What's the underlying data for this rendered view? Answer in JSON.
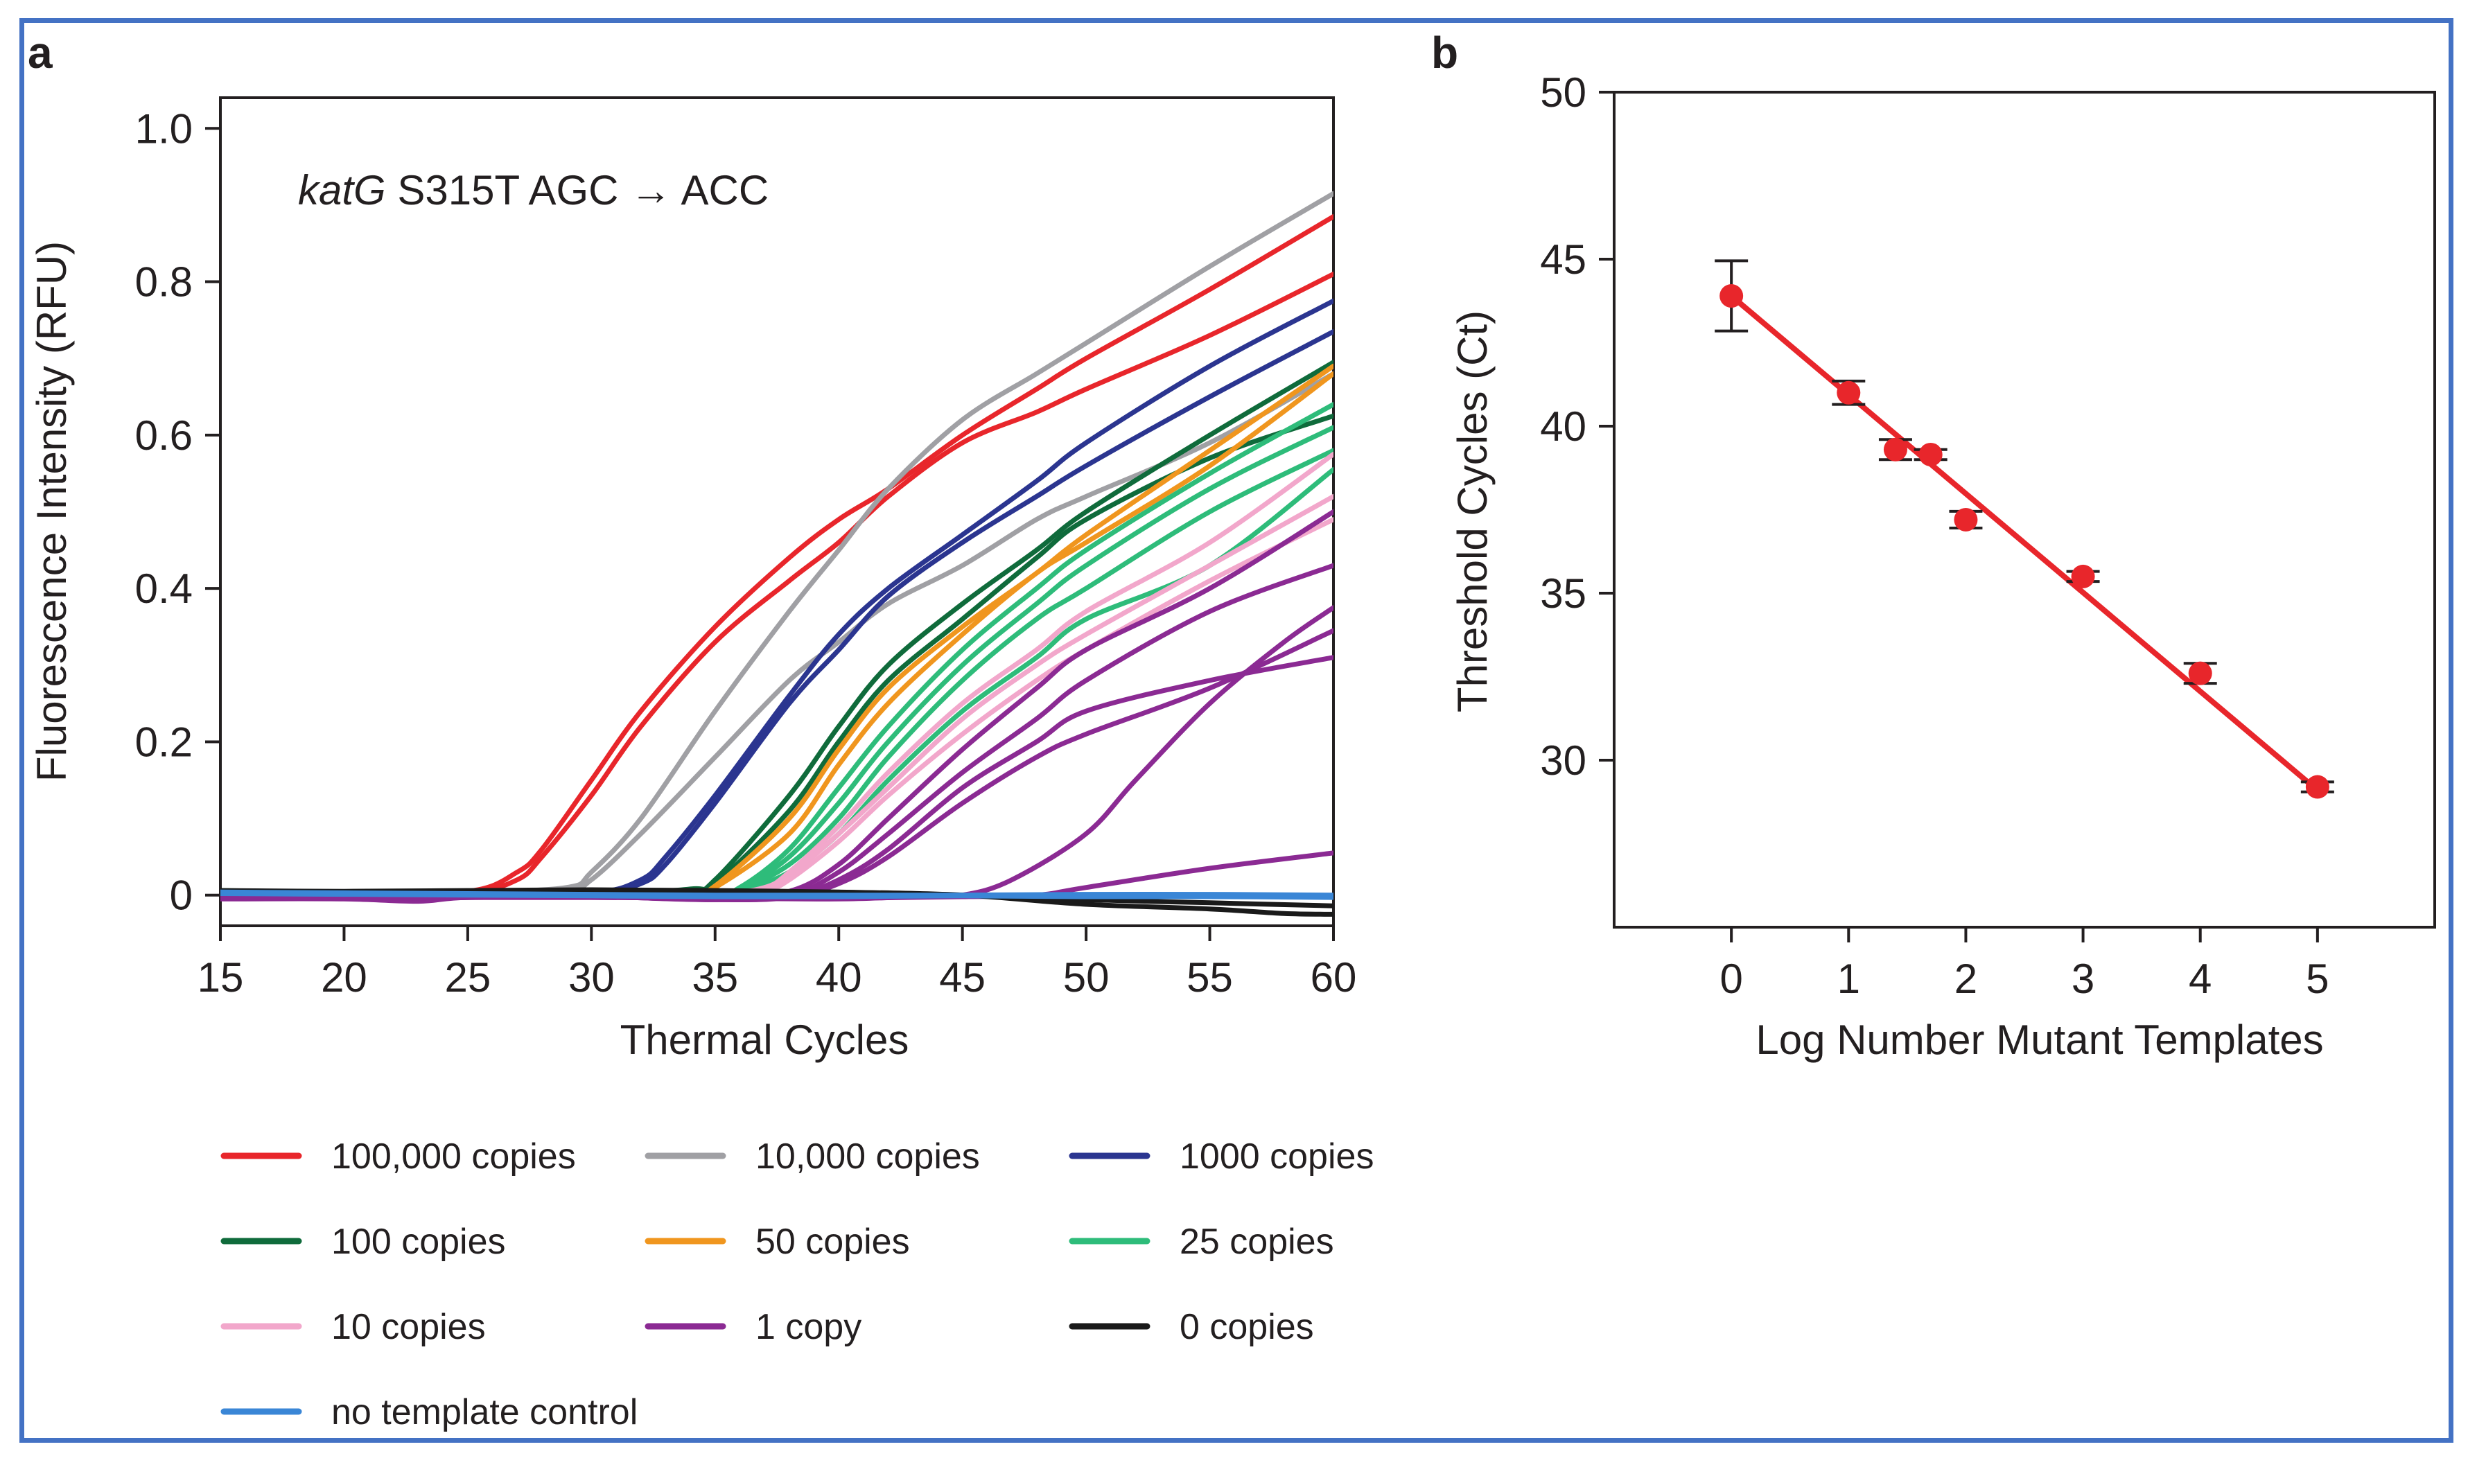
{
  "chart_data": [
    {
      "panel": "a",
      "type": "line",
      "annotation": {
        "gene": "katG",
        "mutation": "S315T",
        "from": "AGC",
        "arrow": "→",
        "to": "ACC"
      },
      "xlabel": "Thermal Cycles",
      "ylabel": "Fluorescence Intensity (RFU)",
      "xlim": [
        15,
        60
      ],
      "ylim": [
        -0.04,
        1.04
      ],
      "xticks": [
        "15",
        "20",
        "25",
        "30",
        "35",
        "40",
        "45",
        "50",
        "55",
        "60"
      ],
      "yticks": [
        {
          "value": 0,
          "label": "0"
        },
        {
          "value": 0.2,
          "label": "0.2"
        },
        {
          "value": 0.4,
          "label": "0.4"
        },
        {
          "value": 0.6,
          "label": "0.6"
        },
        {
          "value": 0.8,
          "label": "0.8"
        },
        {
          "value": 1.0,
          "label": "1.0"
        }
      ],
      "legend": [
        {
          "label": "100,000 copies",
          "color": "#e8262b"
        },
        {
          "label": "10,000 copies",
          "color": "#a0a0a4"
        },
        {
          "label": "1000 copies",
          "color": "#2b3590"
        },
        {
          "label": "100 copies",
          "color": "#0f6b3b"
        },
        {
          "label": "50 copies",
          "color": "#f0961e"
        },
        {
          "label": "25 copies",
          "color": "#2ebc7a"
        },
        {
          "label": "10 copies",
          "color": "#f2a7cb"
        },
        {
          "label": "1 copy",
          "color": "#8b2a93"
        },
        {
          "label": "0 copies",
          "color": "#1a1a1a"
        },
        {
          "label": "no template control",
          "color": "#3a86d6"
        }
      ],
      "series": [
        {
          "group": "100,000 copies",
          "color": "#e8262b",
          "x": [
            15,
            20,
            25,
            27,
            28,
            30,
            32,
            35,
            38,
            40,
            42,
            45,
            48,
            50,
            55,
            60
          ],
          "y": [
            0.005,
            0.004,
            0.005,
            0.03,
            0.06,
            0.15,
            0.24,
            0.35,
            0.44,
            0.49,
            0.53,
            0.6,
            0.66,
            0.7,
            0.79,
            0.885
          ]
        },
        {
          "group": "100,000 copies",
          "color": "#e8262b",
          "x": [
            15,
            20,
            25,
            27,
            28,
            30,
            32,
            35,
            38,
            40,
            42,
            45,
            48,
            50,
            55,
            60
          ],
          "y": [
            0.003,
            0.004,
            0.004,
            0.02,
            0.05,
            0.13,
            0.22,
            0.33,
            0.41,
            0.46,
            0.52,
            0.59,
            0.63,
            0.66,
            0.73,
            0.81
          ]
        },
        {
          "group": "10,000 copies",
          "color": "#a0a0a4",
          "x": [
            15,
            20,
            25,
            29,
            30,
            32,
            35,
            38,
            40,
            42,
            45,
            48,
            50,
            55,
            60
          ],
          "y": [
            0.004,
            0.003,
            0.004,
            0.01,
            0.03,
            0.1,
            0.24,
            0.37,
            0.45,
            0.53,
            0.62,
            0.68,
            0.72,
            0.82,
            0.915
          ]
        },
        {
          "group": "10,000 copies",
          "color": "#a0a0a4",
          "x": [
            15,
            20,
            25,
            29,
            30,
            32,
            35,
            38,
            40,
            42,
            45,
            48,
            50,
            55,
            60
          ],
          "y": [
            0.004,
            0.003,
            0.003,
            0.008,
            0.02,
            0.08,
            0.18,
            0.28,
            0.33,
            0.38,
            0.43,
            0.49,
            0.52,
            0.59,
            0.68
          ]
        },
        {
          "group": "1000 copies",
          "color": "#2b3590",
          "x": [
            15,
            20,
            25,
            30,
            32,
            33,
            35,
            38,
            40,
            42,
            45,
            48,
            50,
            55,
            60
          ],
          "y": [
            0.002,
            0.002,
            0.003,
            0.003,
            0.02,
            0.05,
            0.13,
            0.26,
            0.34,
            0.4,
            0.47,
            0.54,
            0.59,
            0.69,
            0.775
          ]
        },
        {
          "group": "1000 copies",
          "color": "#2b3590",
          "x": [
            15,
            20,
            25,
            30,
            32,
            33,
            35,
            38,
            40,
            42,
            45,
            48,
            50,
            55,
            60
          ],
          "y": [
            0.002,
            0.002,
            0.002,
            0.002,
            0.015,
            0.04,
            0.12,
            0.25,
            0.32,
            0.39,
            0.46,
            0.52,
            0.56,
            0.65,
            0.735
          ]
        },
        {
          "group": "100 copies",
          "color": "#0f6b3b",
          "x": [
            15,
            20,
            25,
            30,
            34,
            35,
            38,
            40,
            42,
            45,
            48,
            50,
            55,
            60
          ],
          "y": [
            0.002,
            0.002,
            0.002,
            0.002,
            0.008,
            0.02,
            0.13,
            0.22,
            0.3,
            0.38,
            0.45,
            0.5,
            0.6,
            0.695
          ]
        },
        {
          "group": "100 copies",
          "color": "#0f6b3b",
          "x": [
            15,
            20,
            25,
            30,
            34,
            35,
            38,
            40,
            42,
            45,
            48,
            50,
            55,
            60
          ],
          "y": [
            0.002,
            0.002,
            0.002,
            0.002,
            0.006,
            0.015,
            0.11,
            0.2,
            0.28,
            0.36,
            0.44,
            0.49,
            0.57,
            0.625
          ]
        },
        {
          "group": "50 copies",
          "color": "#f0961e",
          "x": [
            15,
            20,
            25,
            30,
            34,
            35,
            38,
            40,
            42,
            45,
            48,
            50,
            55,
            60
          ],
          "y": [
            0.002,
            0.002,
            0.002,
            0.002,
            0.005,
            0.012,
            0.1,
            0.19,
            0.27,
            0.35,
            0.42,
            0.47,
            0.58,
            0.69
          ]
        },
        {
          "group": "50 copies",
          "color": "#f0961e",
          "x": [
            15,
            20,
            25,
            30,
            34,
            35,
            38,
            40,
            42,
            45,
            48,
            50,
            55,
            60
          ],
          "y": [
            0.002,
            0.002,
            0.002,
            0.002,
            0.004,
            0.01,
            0.08,
            0.17,
            0.25,
            0.34,
            0.42,
            0.46,
            0.56,
            0.68
          ]
        },
        {
          "group": "25 copies",
          "color": "#2ebc7a",
          "x": [
            15,
            20,
            25,
            30,
            35,
            36,
            38,
            40,
            42,
            45,
            48,
            50,
            55,
            60
          ],
          "y": [
            0.005,
            0.004,
            0.003,
            0.002,
            0.004,
            0.01,
            0.06,
            0.14,
            0.22,
            0.32,
            0.4,
            0.45,
            0.55,
            0.64
          ]
        },
        {
          "group": "25 copies",
          "color": "#2ebc7a",
          "x": [
            15,
            20,
            25,
            30,
            35,
            36,
            38,
            40,
            42,
            45,
            48,
            50,
            55,
            60
          ],
          "y": [
            0.006,
            0.004,
            0.003,
            0.002,
            0.003,
            0.008,
            0.05,
            0.12,
            0.2,
            0.3,
            0.38,
            0.43,
            0.53,
            0.61
          ]
        },
        {
          "group": "25 copies",
          "color": "#2ebc7a",
          "x": [
            15,
            20,
            25,
            30,
            35,
            36,
            38,
            40,
            42,
            45,
            48,
            50,
            55,
            60
          ],
          "y": [
            0.004,
            0.004,
            0.003,
            0.002,
            0.003,
            0.007,
            0.04,
            0.1,
            0.18,
            0.28,
            0.36,
            0.4,
            0.5,
            0.58
          ]
        },
        {
          "group": "25 copies",
          "color": "#2ebc7a",
          "x": [
            15,
            20,
            25,
            30,
            35,
            36,
            38,
            40,
            42,
            45,
            48,
            50,
            55,
            60
          ],
          "y": [
            0.005,
            0.004,
            0.003,
            0.002,
            0.002,
            0.005,
            0.03,
            0.08,
            0.15,
            0.24,
            0.31,
            0.36,
            0.43,
            0.555
          ]
        },
        {
          "group": "10 copies",
          "color": "#f2a7cb",
          "x": [
            15,
            20,
            25,
            30,
            35,
            37,
            38,
            40,
            42,
            45,
            48,
            50,
            55,
            60
          ],
          "y": [
            0.003,
            0.003,
            0.002,
            0.001,
            0.002,
            0.01,
            0.03,
            0.09,
            0.16,
            0.25,
            0.32,
            0.37,
            0.46,
            0.575
          ]
        },
        {
          "group": "10 copies",
          "color": "#f2a7cb",
          "x": [
            15,
            20,
            25,
            30,
            35,
            37,
            38,
            40,
            42,
            45,
            48,
            50,
            55,
            60
          ],
          "y": [
            0.003,
            0.003,
            0.002,
            0.001,
            0.002,
            0.008,
            0.025,
            0.08,
            0.14,
            0.23,
            0.3,
            0.34,
            0.43,
            0.52
          ]
        },
        {
          "group": "10 copies",
          "color": "#f2a7cb",
          "x": [
            15,
            20,
            25,
            30,
            35,
            37,
            38,
            40,
            42,
            45,
            48,
            50,
            55,
            60
          ],
          "y": [
            0.003,
            0.003,
            0.002,
            0.001,
            0.002,
            0.006,
            0.02,
            0.07,
            0.13,
            0.21,
            0.28,
            0.32,
            0.41,
            0.49
          ]
        },
        {
          "group": "1 copy",
          "color": "#8b2a93",
          "x": [
            15,
            20,
            23,
            25,
            30,
            35,
            38,
            40,
            42,
            45,
            48,
            50,
            55,
            60
          ],
          "y": [
            -0.005,
            -0.005,
            -0.008,
            -0.003,
            -0.002,
            -0.004,
            0.005,
            0.04,
            0.1,
            0.19,
            0.27,
            0.32,
            0.4,
            0.5
          ]
        },
        {
          "group": "1 copy",
          "color": "#8b2a93",
          "x": [
            15,
            20,
            25,
            30,
            35,
            38,
            40,
            42,
            45,
            48,
            50,
            55,
            60
          ],
          "y": [
            -0.004,
            -0.004,
            -0.003,
            -0.002,
            -0.006,
            0.0,
            0.03,
            0.08,
            0.16,
            0.23,
            0.28,
            0.37,
            0.43
          ]
        },
        {
          "group": "1 copy",
          "color": "#8b2a93",
          "x": [
            15,
            20,
            25,
            30,
            35,
            38,
            40,
            42,
            45,
            48,
            50,
            55,
            60
          ],
          "y": [
            -0.003,
            -0.004,
            -0.003,
            -0.002,
            -0.005,
            -0.002,
            0.02,
            0.06,
            0.14,
            0.2,
            0.24,
            0.28,
            0.31
          ]
        },
        {
          "group": "1 copy",
          "color": "#8b2a93",
          "x": [
            15,
            20,
            25,
            30,
            35,
            38,
            40,
            42,
            45,
            48,
            50,
            55,
            60
          ],
          "y": [
            -0.004,
            -0.004,
            -0.003,
            -0.002,
            -0.006,
            -0.003,
            0.015,
            0.05,
            0.12,
            0.18,
            0.21,
            0.27,
            0.345
          ]
        },
        {
          "group": "1 copy",
          "color": "#8b2a93",
          "x": [
            15,
            20,
            25,
            30,
            35,
            40,
            43,
            45,
            47,
            50,
            52,
            55,
            58,
            60
          ],
          "y": [
            -0.004,
            -0.004,
            -0.003,
            -0.003,
            -0.004,
            -0.005,
            -0.002,
            0.0,
            0.02,
            0.08,
            0.15,
            0.25,
            0.33,
            0.375
          ]
        },
        {
          "group": "1 copy",
          "color": "#8b2a93",
          "x": [
            15,
            20,
            25,
            30,
            35,
            40,
            45,
            48,
            50,
            55,
            60
          ],
          "y": [
            -0.003,
            -0.003,
            -0.003,
            -0.003,
            -0.004,
            -0.004,
            -0.002,
            0.0,
            0.01,
            0.035,
            0.055
          ]
        },
        {
          "group": "0 copies",
          "color": "#1a1a1a",
          "x": [
            15,
            20,
            25,
            30,
            35,
            40,
            45,
            50,
            55,
            58,
            60
          ],
          "y": [
            0.006,
            0.005,
            0.006,
            0.007,
            0.006,
            0.004,
            0.0,
            -0.012,
            -0.018,
            -0.024,
            -0.025
          ]
        },
        {
          "group": "0 copies",
          "color": "#1a1a1a",
          "x": [
            15,
            20,
            25,
            30,
            35,
            40,
            45,
            50,
            55,
            60
          ],
          "y": [
            0.004,
            0.004,
            0.005,
            0.005,
            0.004,
            0.003,
            0.0,
            -0.006,
            -0.01,
            -0.014
          ]
        },
        {
          "group": "no template control",
          "color": "#3a86d6",
          "x": [
            15,
            20,
            25,
            30,
            35,
            40,
            45,
            50,
            55,
            60
          ],
          "y": [
            0.002,
            0.001,
            0.0,
            -0.001,
            -0.002,
            -0.002,
            -0.001,
            -0.002,
            -0.002,
            -0.003
          ]
        },
        {
          "group": "no template control",
          "color": "#3a86d6",
          "x": [
            15,
            20,
            25,
            30,
            35,
            40,
            45,
            50,
            55,
            60
          ],
          "y": [
            0.004,
            0.003,
            0.002,
            0.001,
            0.0,
            0.0,
            0.0,
            0.001,
            0.001,
            0.0
          ]
        }
      ]
    },
    {
      "panel": "b",
      "type": "scatter",
      "xlabel": "Log Number Mutant Templates",
      "ylabel": "Threshold Cycles (Ct)",
      "xlim": [
        -1,
        6
      ],
      "ylim": [
        25,
        50
      ],
      "xticks": [
        "0",
        "1",
        "2",
        "3",
        "4",
        "5"
      ],
      "yticks": [
        "30",
        "35",
        "40",
        "45",
        "50"
      ],
      "points": [
        {
          "x": 0,
          "y": 43.9,
          "err": 1.05
        },
        {
          "x": 1,
          "y": 41.0,
          "err": 0.35
        },
        {
          "x": 1.4,
          "y": 39.3,
          "err": 0.3
        },
        {
          "x": 1.7,
          "y": 39.15,
          "err": 0.15
        },
        {
          "x": 2,
          "y": 37.2,
          "err": 0.25
        },
        {
          "x": 3,
          "y": 35.5,
          "err": 0.15
        },
        {
          "x": 4,
          "y": 32.6,
          "err": 0.3
        },
        {
          "x": 5,
          "y": 29.2,
          "err": 0.15
        }
      ],
      "fit": {
        "x": [
          0,
          5
        ],
        "y": [
          43.9,
          29.1
        ]
      },
      "point_color": "#e8262b",
      "line_color": "#e8262b"
    }
  ]
}
